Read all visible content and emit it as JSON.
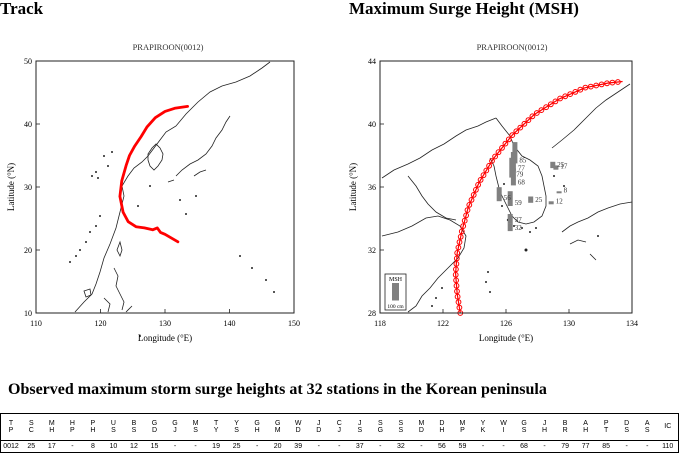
{
  "headings": {
    "track": "Track",
    "msh": "Maximum Surge Height (MSH)",
    "observed": "Observed maximum storm surge heights at 32 stations in the Korean peninsula"
  },
  "track_map": {
    "title": "PRAPIROON(0012)",
    "xlabel": "Longitude (°E)",
    "ylabel": "Latitude (°N)",
    "x_ticks": [
      "110",
      "120",
      "130",
      "140",
      "150"
    ],
    "y_ticks": [
      "10",
      "20",
      "30",
      "40",
      "50"
    ],
    "track_color": "#ff0000",
    "track_points": [
      [
        132,
        21.3
      ],
      [
        130,
        22.5
      ],
      [
        129.3,
        22.8
      ],
      [
        128.8,
        23.5
      ],
      [
        128.1,
        23.2
      ],
      [
        126.8,
        23.5
      ],
      [
        125.5,
        23.7
      ],
      [
        124.3,
        24.5
      ],
      [
        123.5,
        26
      ],
      [
        123,
        28.5
      ],
      [
        123.3,
        31
      ],
      [
        124,
        33.5
      ],
      [
        124.5,
        35
      ],
      [
        125.3,
        36.5
      ],
      [
        126.3,
        38
      ],
      [
        127.2,
        39.5
      ],
      [
        128.5,
        41
      ],
      [
        130,
        42
      ],
      [
        131.5,
        42.5
      ],
      [
        133.5,
        42.8
      ]
    ]
  },
  "msh_map": {
    "title": "PRAPIROON(0012)",
    "xlabel": "Longitude (°E)",
    "ylabel": "Latitude (°N)",
    "x_ticks": [
      "118",
      "122",
      "126",
      "130",
      "134"
    ],
    "y_ticks": [
      "28",
      "32",
      "36",
      "40",
      "44"
    ],
    "track_color": "#ff0000",
    "bar_color": "#808080",
    "track_points": [
      [
        123.1,
        28
      ],
      [
        122.9,
        29.2
      ],
      [
        122.8,
        30.5
      ],
      [
        122.9,
        31.8
      ],
      [
        123.2,
        33.2
      ],
      [
        123.6,
        34.7
      ],
      [
        124.3,
        36.3
      ],
      [
        125.2,
        37.8
      ],
      [
        126.4,
        39.3
      ],
      [
        127.8,
        40.6
      ],
      [
        129.4,
        41.6
      ],
      [
        131,
        42.3
      ],
      [
        132.5,
        42.6
      ],
      [
        133.4,
        42.7
      ]
    ],
    "legend": {
      "label": "MSH",
      "scale": "100 cm"
    },
    "stations": [
      {
        "label": "25",
        "lon": 129.0,
        "lat": 37.2,
        "value": 25
      },
      {
        "label": "85",
        "lon": 126.6,
        "lat": 37.5,
        "value": 85
      },
      {
        "label": "17",
        "lon": 129.2,
        "lat": 37.1,
        "value": 17
      },
      {
        "label": "77",
        "lon": 126.5,
        "lat": 37.0,
        "value": 77
      },
      {
        "label": "79",
        "lon": 126.4,
        "lat": 36.6,
        "value": 79
      },
      {
        "label": "68",
        "lon": 126.5,
        "lat": 36.1,
        "value": 68
      },
      {
        "label": "8",
        "lon": 129.4,
        "lat": 35.6,
        "value": 8
      },
      {
        "label": "56",
        "lon": 125.6,
        "lat": 35.1,
        "value": 56
      },
      {
        "label": "59",
        "lon": 126.3,
        "lat": 34.8,
        "value": 59
      },
      {
        "label": "25",
        "lon": 127.6,
        "lat": 35.0,
        "value": 25
      },
      {
        "label": "12",
        "lon": 128.9,
        "lat": 34.9,
        "value": 12
      },
      {
        "label": "37",
        "lon": 126.3,
        "lat": 33.7,
        "value": 37
      },
      {
        "label": "32",
        "lon": 126.3,
        "lat": 33.2,
        "value": 32
      }
    ]
  },
  "table": {
    "header": [
      [
        "T",
        "P"
      ],
      [
        "S",
        "C"
      ],
      [
        "M",
        "H"
      ],
      [
        "H",
        "P"
      ],
      [
        "P",
        "H"
      ],
      [
        "U",
        "S"
      ],
      [
        "B",
        "S"
      ],
      [
        "G",
        "D"
      ],
      [
        "G",
        "J"
      ],
      [
        "M",
        "S"
      ],
      [
        "T",
        "Y"
      ],
      [
        "Y",
        "S"
      ],
      [
        "G",
        "H"
      ],
      [
        "G",
        "M"
      ],
      [
        "W",
        "D"
      ],
      [
        "J",
        "D"
      ],
      [
        "C",
        "J"
      ],
      [
        "J",
        "S"
      ],
      [
        "S",
        "G"
      ],
      [
        "S",
        "S"
      ],
      [
        "M",
        "D"
      ],
      [
        "D",
        "H"
      ],
      [
        "M",
        "P"
      ],
      [
        "Y",
        "K"
      ],
      [
        "W",
        "I"
      ],
      [
        "G",
        "S"
      ],
      [
        "J",
        "H"
      ],
      [
        "B",
        "R"
      ],
      [
        "A",
        "H"
      ],
      [
        "P",
        "T"
      ],
      [
        "D",
        "S"
      ],
      [
        "A",
        "S"
      ],
      [
        "IC",
        ""
      ]
    ],
    "values": [
      "0012",
      "25",
      "17",
      "-",
      "8",
      "10",
      "12",
      "15",
      "-",
      "-",
      "19",
      "25",
      "-",
      "20",
      "39",
      "-",
      "-",
      "37",
      "-",
      "32",
      "-",
      "56",
      "59",
      "-",
      "-",
      "68",
      "-",
      "79",
      "77",
      "85",
      "-",
      "-",
      "110"
    ]
  }
}
